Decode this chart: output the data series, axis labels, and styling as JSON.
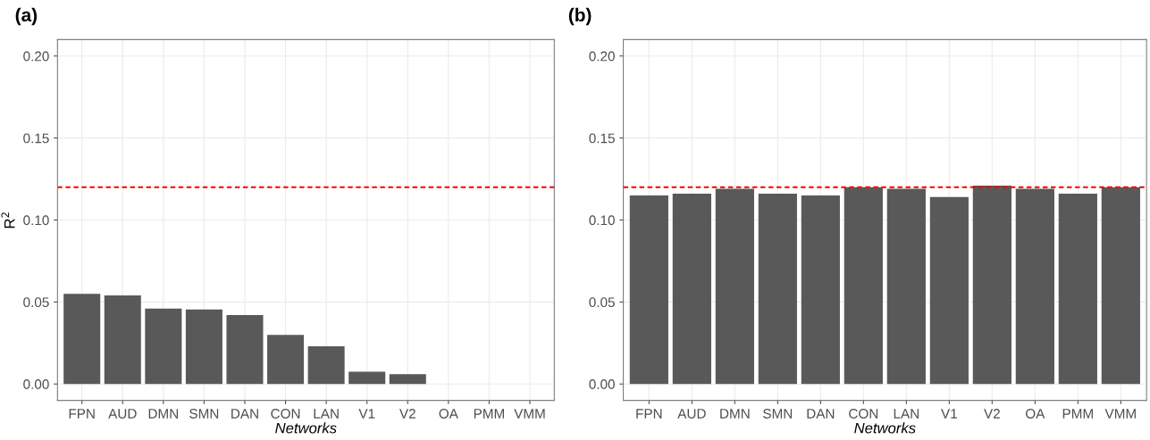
{
  "chart_data": [
    {
      "type": "bar",
      "title": "(a)",
      "xlabel": "Networks",
      "ylabel": "R$^{2}$",
      "categories": [
        "FPN",
        "AUD",
        "DMN",
        "SMN",
        "DAN",
        "CON",
        "LAN",
        "V1",
        "V2",
        "OA",
        "PMM",
        "VMM"
      ],
      "series": [
        {
          "color": "#595959",
          "values": [
            0.055,
            0.054,
            0.046,
            0.0455,
            0.042,
            0.03,
            0.023,
            0.0075,
            0.006,
            0,
            0,
            0
          ]
        }
      ],
      "ylim": [
        -0.01,
        0.21
      ],
      "yticks": [
        {
          "value": 0,
          "label": "0.00"
        },
        {
          "value": 0.05,
          "label": "0.05"
        },
        {
          "value": 0.1,
          "label": "0.10"
        },
        {
          "value": 0.15,
          "label": "0.15"
        },
        {
          "value": 0.2,
          "label": "0.20"
        }
      ],
      "grid": true,
      "ref_lines": [
        {
          "axis": "y",
          "value": 0.12,
          "color": "#ff0000",
          "line_style": "dashed"
        }
      ]
    },
    {
      "type": "bar",
      "title": "(b)",
      "xlabel": "Networks",
      "categories": [
        "FPN",
        "AUD",
        "DMN",
        "SMN",
        "DAN",
        "CON",
        "LAN",
        "V1",
        "V2",
        "OA",
        "PMM",
        "VMM"
      ],
      "series": [
        {
          "color": "#595959",
          "values": [
            0.115,
            0.116,
            0.119,
            0.116,
            0.115,
            0.12,
            0.119,
            0.114,
            0.121,
            0.119,
            0.116,
            0.12
          ]
        }
      ],
      "ylim": [
        -0.01,
        0.21
      ],
      "yticks": [
        {
          "value": 0,
          "label": "0.00"
        },
        {
          "value": 0.05,
          "label": "0.05"
        },
        {
          "value": 0.1,
          "label": "0.10"
        },
        {
          "value": 0.15,
          "label": "0.15"
        },
        {
          "value": 0.2,
          "label": "0.20"
        }
      ],
      "grid": true,
      "ref_lines": [
        {
          "axis": "y",
          "value": 0.12,
          "color": "#ff0000",
          "line_style": "dashed"
        }
      ]
    }
  ]
}
